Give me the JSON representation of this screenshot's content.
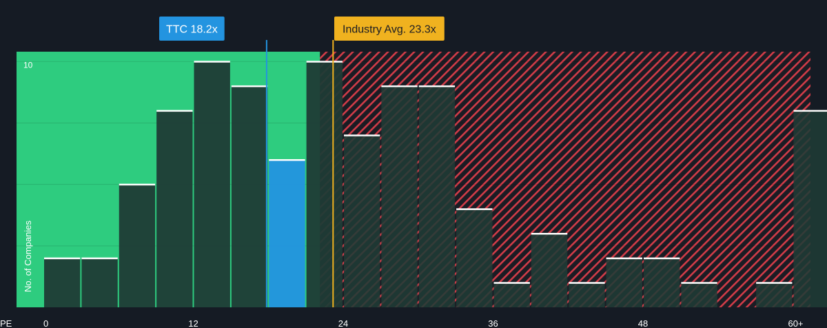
{
  "chart_data": {
    "type": "bar",
    "xlabel": "PE",
    "ylabel": "No. of Companies",
    "x_tick_labels": [
      "0",
      "12",
      "24",
      "36",
      "48",
      "60+"
    ],
    "x_tick_values": [
      0,
      12,
      24,
      36,
      48,
      60
    ],
    "y_tick_labels": [
      "10"
    ],
    "y_tick_values": [
      10
    ],
    "ylim": [
      0,
      10.4
    ],
    "bin_width": 3,
    "bins": [
      {
        "x0": 0,
        "x1": 3,
        "value": 2
      },
      {
        "x0": 3,
        "x1": 6,
        "value": 2
      },
      {
        "x0": 6,
        "x1": 9,
        "value": 5
      },
      {
        "x0": 9,
        "x1": 12,
        "value": 8
      },
      {
        "x0": 12,
        "x1": 15,
        "value": 10
      },
      {
        "x0": 15,
        "x1": 18,
        "value": 9
      },
      {
        "x0": 18,
        "x1": 21,
        "value": 6
      },
      {
        "x0": 21,
        "x1": 24,
        "value": 10
      },
      {
        "x0": 24,
        "x1": 27,
        "value": 7
      },
      {
        "x0": 27,
        "x1": 30,
        "value": 9
      },
      {
        "x0": 30,
        "x1": 33,
        "value": 9
      },
      {
        "x0": 33,
        "x1": 36,
        "value": 4
      },
      {
        "x0": 36,
        "x1": 39,
        "value": 1
      },
      {
        "x0": 39,
        "x1": 42,
        "value": 3
      },
      {
        "x0": 42,
        "x1": 45,
        "value": 1
      },
      {
        "x0": 45,
        "x1": 48,
        "value": 2
      },
      {
        "x0": 48,
        "x1": 51,
        "value": 2
      },
      {
        "x0": 51,
        "x1": 54,
        "value": 1
      },
      {
        "x0": 54,
        "x1": 57,
        "value": 0
      },
      {
        "x0": 57,
        "x1": 60,
        "value": 1
      },
      {
        "x0": 60,
        "x1": 63,
        "value": 8
      }
    ],
    "company": {
      "label": "TTC 18.2x",
      "value": 18.2,
      "color": "#2394e0"
    },
    "industry_avg": {
      "label": "Industry Avg. 23.3x",
      "value": 23.3,
      "color": "#f0b21f"
    },
    "colors": {
      "background": "#151b24",
      "fair_zone": "#2ecc7f",
      "bar_dark": "#1f3b36",
      "bar_highlight": "#2394e0",
      "overvalued_hatch": "#d23c48",
      "bar_top": "#ffffff"
    }
  }
}
